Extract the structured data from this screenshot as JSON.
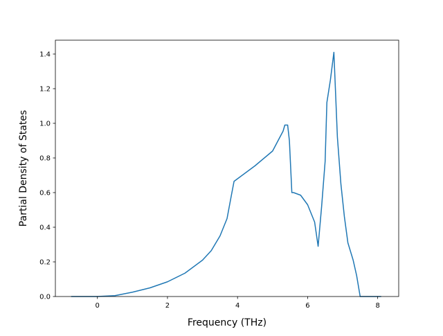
{
  "chart_data": {
    "type": "line",
    "title": "",
    "xlabel": "Frequency (THz)",
    "ylabel": "Partial Density of States",
    "xlim": [
      -1.2,
      8.6
    ],
    "ylim": [
      0.0,
      1.48
    ],
    "x_ticks": [
      0,
      2,
      4,
      6,
      8
    ],
    "x_tick_labels": [
      "0",
      "2",
      "4",
      "6",
      "8"
    ],
    "y_ticks": [
      0.0,
      0.2,
      0.4,
      0.6,
      0.8,
      1.0,
      1.2,
      1.4
    ],
    "y_tick_labels": [
      "0.0",
      "0.2",
      "0.4",
      "0.6",
      "0.8",
      "1.0",
      "1.2",
      "1.4"
    ],
    "grid": false,
    "series": [
      {
        "color": "#1f77b4",
        "x": [
          -0.75,
          -0.25,
          0.0,
          0.5,
          1.0,
          1.5,
          2.0,
          2.5,
          3.0,
          3.25,
          3.5,
          3.7,
          3.82,
          3.9,
          4.0,
          4.5,
          5.0,
          5.3,
          5.35,
          5.43,
          5.48,
          5.55,
          5.6,
          5.8,
          6.0,
          6.1,
          6.2,
          6.3,
          6.4,
          6.5,
          6.55,
          6.65,
          6.75,
          6.85,
          6.95,
          7.05,
          7.15,
          7.3,
          7.4,
          7.5,
          7.8,
          8.1
        ],
        "y": [
          0.0,
          0.0,
          0.0,
          0.005,
          0.025,
          0.05,
          0.085,
          0.135,
          0.21,
          0.265,
          0.35,
          0.45,
          0.58,
          0.665,
          0.68,
          0.755,
          0.84,
          0.955,
          0.99,
          0.99,
          0.9,
          0.6,
          0.6,
          0.585,
          0.53,
          0.48,
          0.43,
          0.29,
          0.52,
          0.78,
          1.12,
          1.25,
          1.41,
          0.92,
          0.65,
          0.46,
          0.31,
          0.21,
          0.12,
          0.0,
          0.0,
          0.0
        ]
      }
    ]
  }
}
